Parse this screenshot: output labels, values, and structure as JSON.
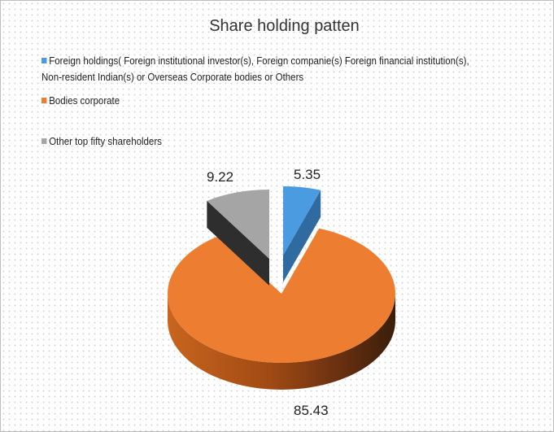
{
  "chart_data": {
    "type": "pie",
    "variant": "3d-exploded",
    "title": "Share holding patten",
    "legend_placement": "top",
    "categories": [
      "Foreign holdings( Foreign institutional investor(s), Foreign companie(s) Foreign financial institution(s), Non-resident Indian(s) or Overseas Corporate bodies or Others",
      "Bodies corporate",
      "Other top fifty shareholders"
    ],
    "values": [
      5.35,
      85.43,
      9.22
    ],
    "data_labels": [
      "5.35",
      "85.43",
      "9.22"
    ],
    "colors": [
      "#4a9be0",
      "#ed7d31",
      "#a5a5a5"
    ]
  }
}
